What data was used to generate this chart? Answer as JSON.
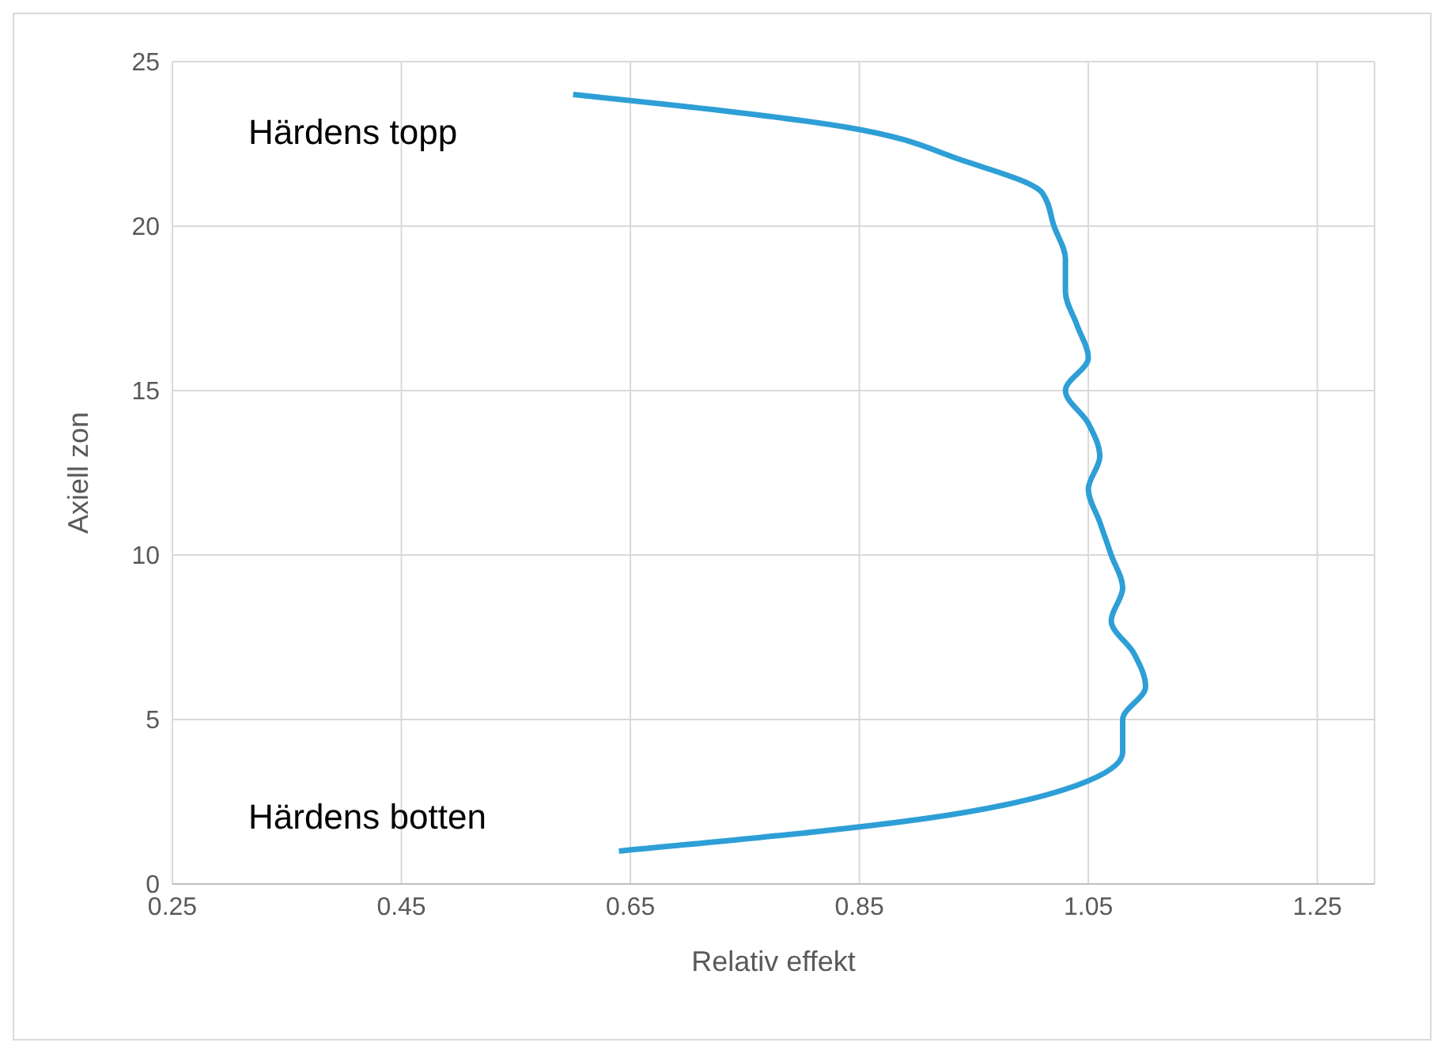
{
  "chart_data": {
    "type": "line",
    "xlabel": "Relativ effekt",
    "ylabel": "Axiell zon",
    "series": [
      {
        "color": "#2e9fd6",
        "x": [
          0.64,
          0.91,
          1.04,
          1.08,
          1.08,
          1.1,
          1.09,
          1.07,
          1.08,
          1.07,
          1.06,
          1.05,
          1.06,
          1.05,
          1.03,
          1.05,
          1.04,
          1.03,
          1.03,
          1.02,
          1.01,
          0.94,
          0.84,
          0.6
        ],
        "values": [
          1,
          2,
          3,
          4,
          5,
          6,
          7,
          8,
          9,
          10,
          11,
          12,
          13,
          14,
          15,
          16,
          17,
          18,
          19,
          20,
          21,
          22,
          23,
          24
        ]
      }
    ],
    "xlim": [
      0.25,
      1.3
    ],
    "xticks": [
      {
        "value": 0.25,
        "label": "0.25"
      },
      {
        "value": 0.45,
        "label": "0.45"
      },
      {
        "value": 0.65,
        "label": "0.65"
      },
      {
        "value": 0.85,
        "label": "0.85"
      },
      {
        "value": 1.05,
        "label": "1.05"
      },
      {
        "value": 1.25,
        "label": "1.25"
      }
    ],
    "ylim": [
      0,
      25
    ],
    "yticks": [
      0,
      5,
      10,
      15,
      20,
      25
    ],
    "grid": true,
    "marker": "none",
    "line_style": "solid",
    "annotations": [
      "Härdens topp",
      "Härdens botten"
    ]
  }
}
